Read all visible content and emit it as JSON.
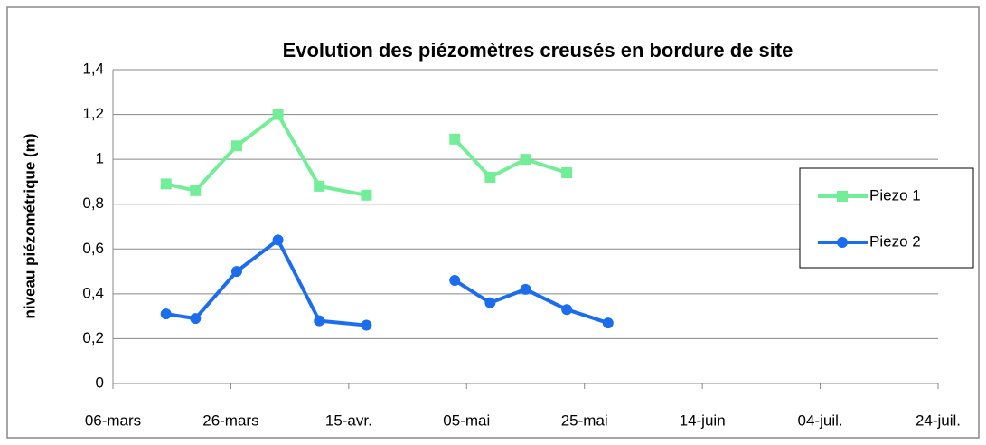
{
  "chart_data": {
    "type": "line",
    "title": "Evolution des piézomètres creusés en bordure de site",
    "y_label": "niveau piézométrique (m)",
    "x": [
      "15-03",
      "20-03",
      "27-03",
      "03-04",
      "10-04",
      "18-04",
      "26-04",
      "03-05",
      "09-05",
      "15-05",
      "22-05",
      "29-05"
    ],
    "series": [
      {
        "name": "Piezo 1",
        "color": "#72ee98",
        "marker": "square",
        "values": [
          0.89,
          0.86,
          1.06,
          1.2,
          0.88,
          0.84,
          null,
          1.09,
          0.92,
          1.0,
          0.94,
          null
        ]
      },
      {
        "name": "Piezo 2",
        "color": "#1c6ded",
        "marker": "circle",
        "values": [
          0.31,
          0.29,
          0.5,
          0.64,
          0.28,
          0.26,
          null,
          0.46,
          0.36,
          0.42,
          0.33,
          0.27
        ]
      }
    ],
    "xlim": [
      "06-03",
      "24-07"
    ],
    "xticks": [
      {
        "value": "06-03",
        "label": "06-mars"
      },
      {
        "value": "26-03",
        "label": "26-mars"
      },
      {
        "value": "15-04",
        "label": "15-avr."
      },
      {
        "value": "05-05",
        "label": "05-mai"
      },
      {
        "value": "25-05",
        "label": "25-mai"
      },
      {
        "value": "14-06",
        "label": "14-juin"
      },
      {
        "value": "04-07",
        "label": "04-juil."
      },
      {
        "value": "24-07",
        "label": "24-juil."
      }
    ],
    "ylim": [
      0,
      1.4
    ],
    "yticks": [
      0,
      {
        "value": 0.2,
        "label": "0,2"
      },
      {
        "value": 0.4,
        "label": "0,4"
      },
      {
        "value": 0.6,
        "label": "0,6"
      },
      {
        "value": 0.8,
        "label": "0,8"
      },
      1,
      {
        "value": 1.2,
        "label": "1,2"
      },
      {
        "value": 1.4,
        "label": "1,4"
      }
    ],
    "grid": true,
    "legend": "right"
  }
}
